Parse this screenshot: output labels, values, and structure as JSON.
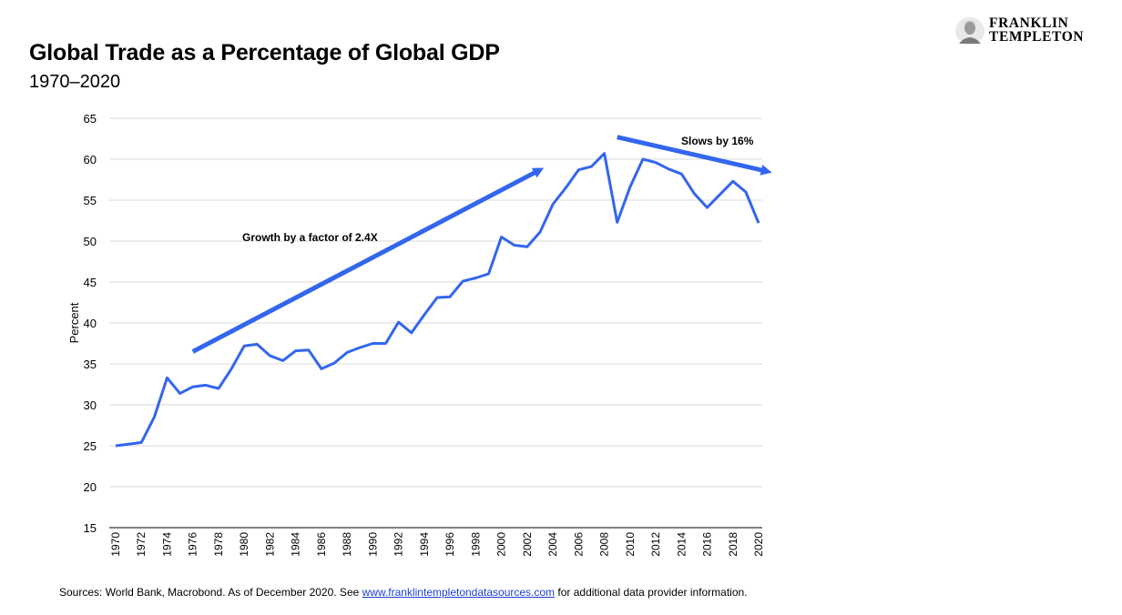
{
  "header": {
    "title": "Global Trade as a Percentage of Global GDP",
    "subtitle": "1970–2020"
  },
  "logo": {
    "line1": "FRANKLIN",
    "line2": "TEMPLETON"
  },
  "footer": {
    "prefix": "Sources: World Bank, Macrobond. As of December 2020. See ",
    "link": "www.franklintempletondatasources.com",
    "suffix": " for additional data provider information."
  },
  "colors": {
    "line": "#3366ee",
    "arrow": "#3366ee",
    "grid": "#d9d9d9",
    "link": "#1f3fd6"
  },
  "chart_data": {
    "type": "line",
    "title": "Global Trade as a Percentage of Global GDP",
    "subtitle": "1970–2020",
    "xlabel": "",
    "ylabel": "Percent",
    "ylim": [
      15,
      65
    ],
    "yticks": [
      15,
      20,
      25,
      30,
      35,
      40,
      45,
      50,
      55,
      60,
      65
    ],
    "xlim": [
      1970,
      2020
    ],
    "xticks": [
      1970,
      1972,
      1974,
      1976,
      1978,
      1980,
      1982,
      1984,
      1986,
      1988,
      1990,
      1992,
      1994,
      1996,
      1998,
      2000,
      2002,
      2004,
      2006,
      2008,
      2010,
      2012,
      2014,
      2016,
      2018,
      2020
    ],
    "grid": true,
    "legend": "none",
    "series": [
      {
        "x": [
          1970,
          1971,
          1972,
          1973,
          1974,
          1975,
          1976,
          1977,
          1978,
          1979,
          1980,
          1981,
          1982,
          1983,
          1984,
          1985,
          1986,
          1987,
          1988,
          1989,
          1990,
          1991,
          1992,
          1993,
          1994,
          1995,
          1996,
          1997,
          1998,
          1999,
          2000,
          2001,
          2002,
          2003,
          2004,
          2005,
          2006,
          2007,
          2008,
          2009,
          2010,
          2011,
          2012,
          2013,
          2014,
          2015,
          2016,
          2017,
          2018,
          2019,
          2020
        ],
        "values": [
          25.0,
          25.2,
          25.4,
          28.5,
          33.3,
          31.4,
          32.2,
          32.4,
          32.0,
          34.4,
          37.2,
          37.4,
          36.0,
          35.4,
          36.6,
          36.7,
          34.4,
          35.1,
          36.4,
          37.0,
          37.5,
          37.5,
          40.1,
          38.8,
          41.0,
          43.1,
          43.2,
          45.1,
          45.5,
          46.0,
          50.5,
          49.5,
          49.3,
          51.1,
          54.5,
          56.5,
          58.7,
          59.1,
          60.7,
          52.3,
          56.6,
          60.0,
          59.6,
          58.8,
          58.2,
          55.8,
          54.1,
          55.7,
          57.3,
          56.0,
          52.2
        ]
      }
    ],
    "annotations": [
      {
        "text": "Growth by a factor of 2.4X",
        "arrow_from": [
          1976,
          36.5
        ],
        "arrow_to": [
          2003,
          58.7
        ]
      },
      {
        "text": "Slows by 16%",
        "arrow_from": [
          2009,
          62.7
        ],
        "arrow_to": [
          2020.7,
          58.5
        ]
      }
    ]
  }
}
